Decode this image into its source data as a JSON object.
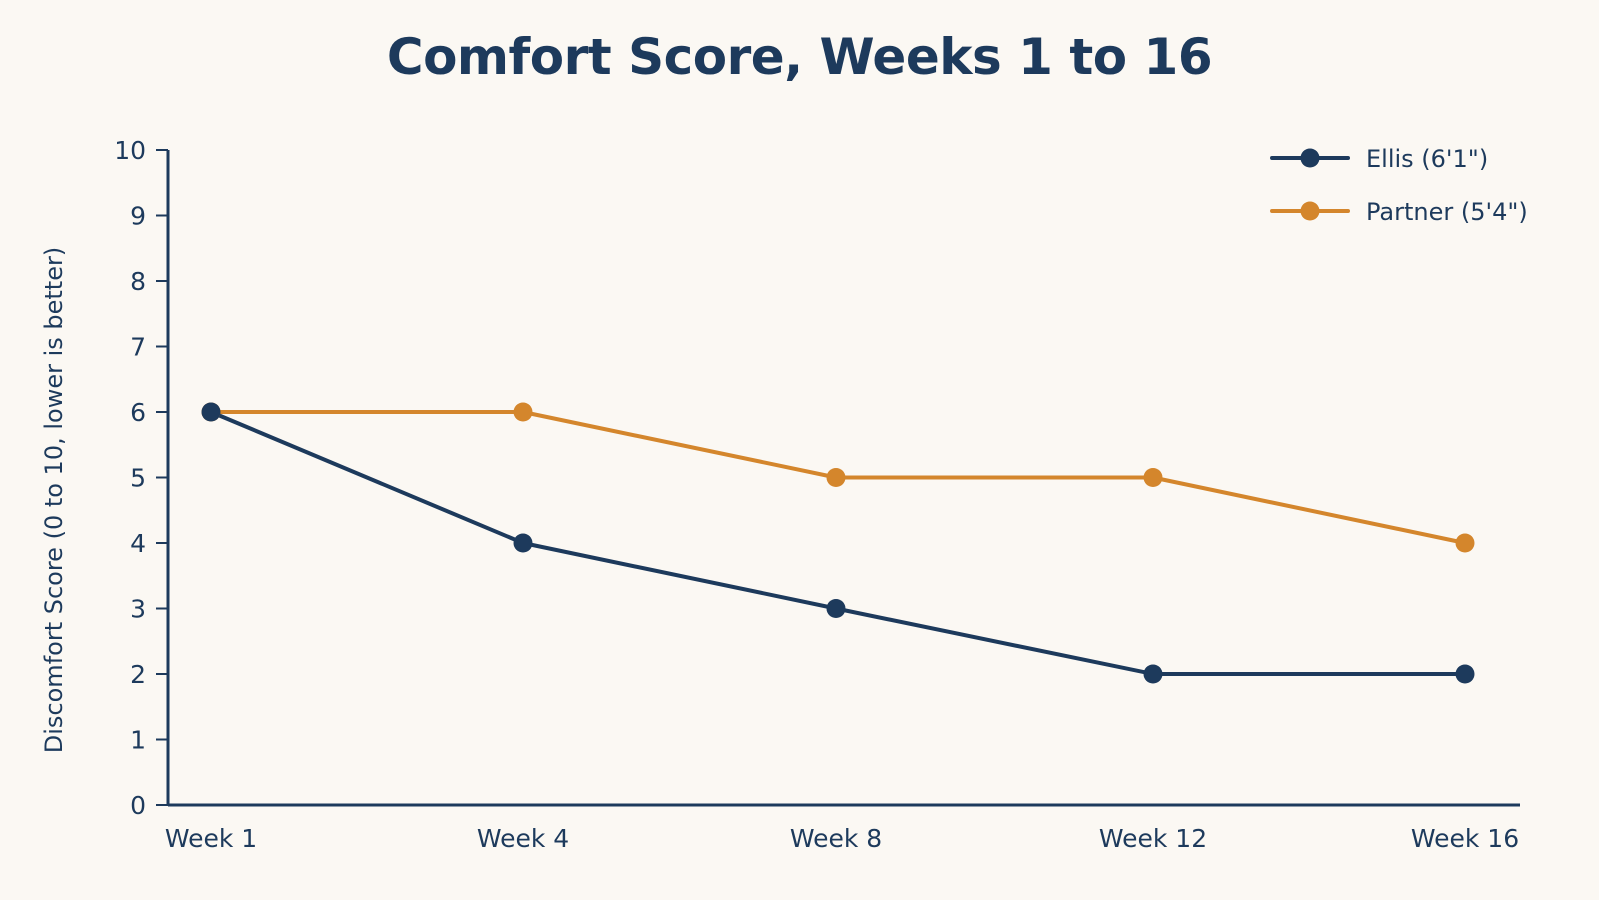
{
  "chart_data": {
    "type": "line",
    "title": "Comfort Score, Weeks 1 to 16",
    "xlabel": "",
    "ylabel": "Discomfort Score (0 to 10, lower is better)",
    "categories": [
      "Week 1",
      "Week 4",
      "Week 8",
      "Week 12",
      "Week 16"
    ],
    "ylim": [
      0,
      10
    ],
    "yticks": [
      0,
      1,
      2,
      3,
      4,
      5,
      6,
      7,
      8,
      9,
      10
    ],
    "grid": false,
    "legend_position": "top-right",
    "series": [
      {
        "name": "Ellis (6'1\")",
        "color": "#1d3a5c",
        "values": [
          6,
          4,
          3,
          2,
          2
        ]
      },
      {
        "name": "Partner (5'4\")",
        "color": "#d4862c",
        "values": [
          6,
          6,
          5,
          5,
          4
        ]
      }
    ]
  }
}
